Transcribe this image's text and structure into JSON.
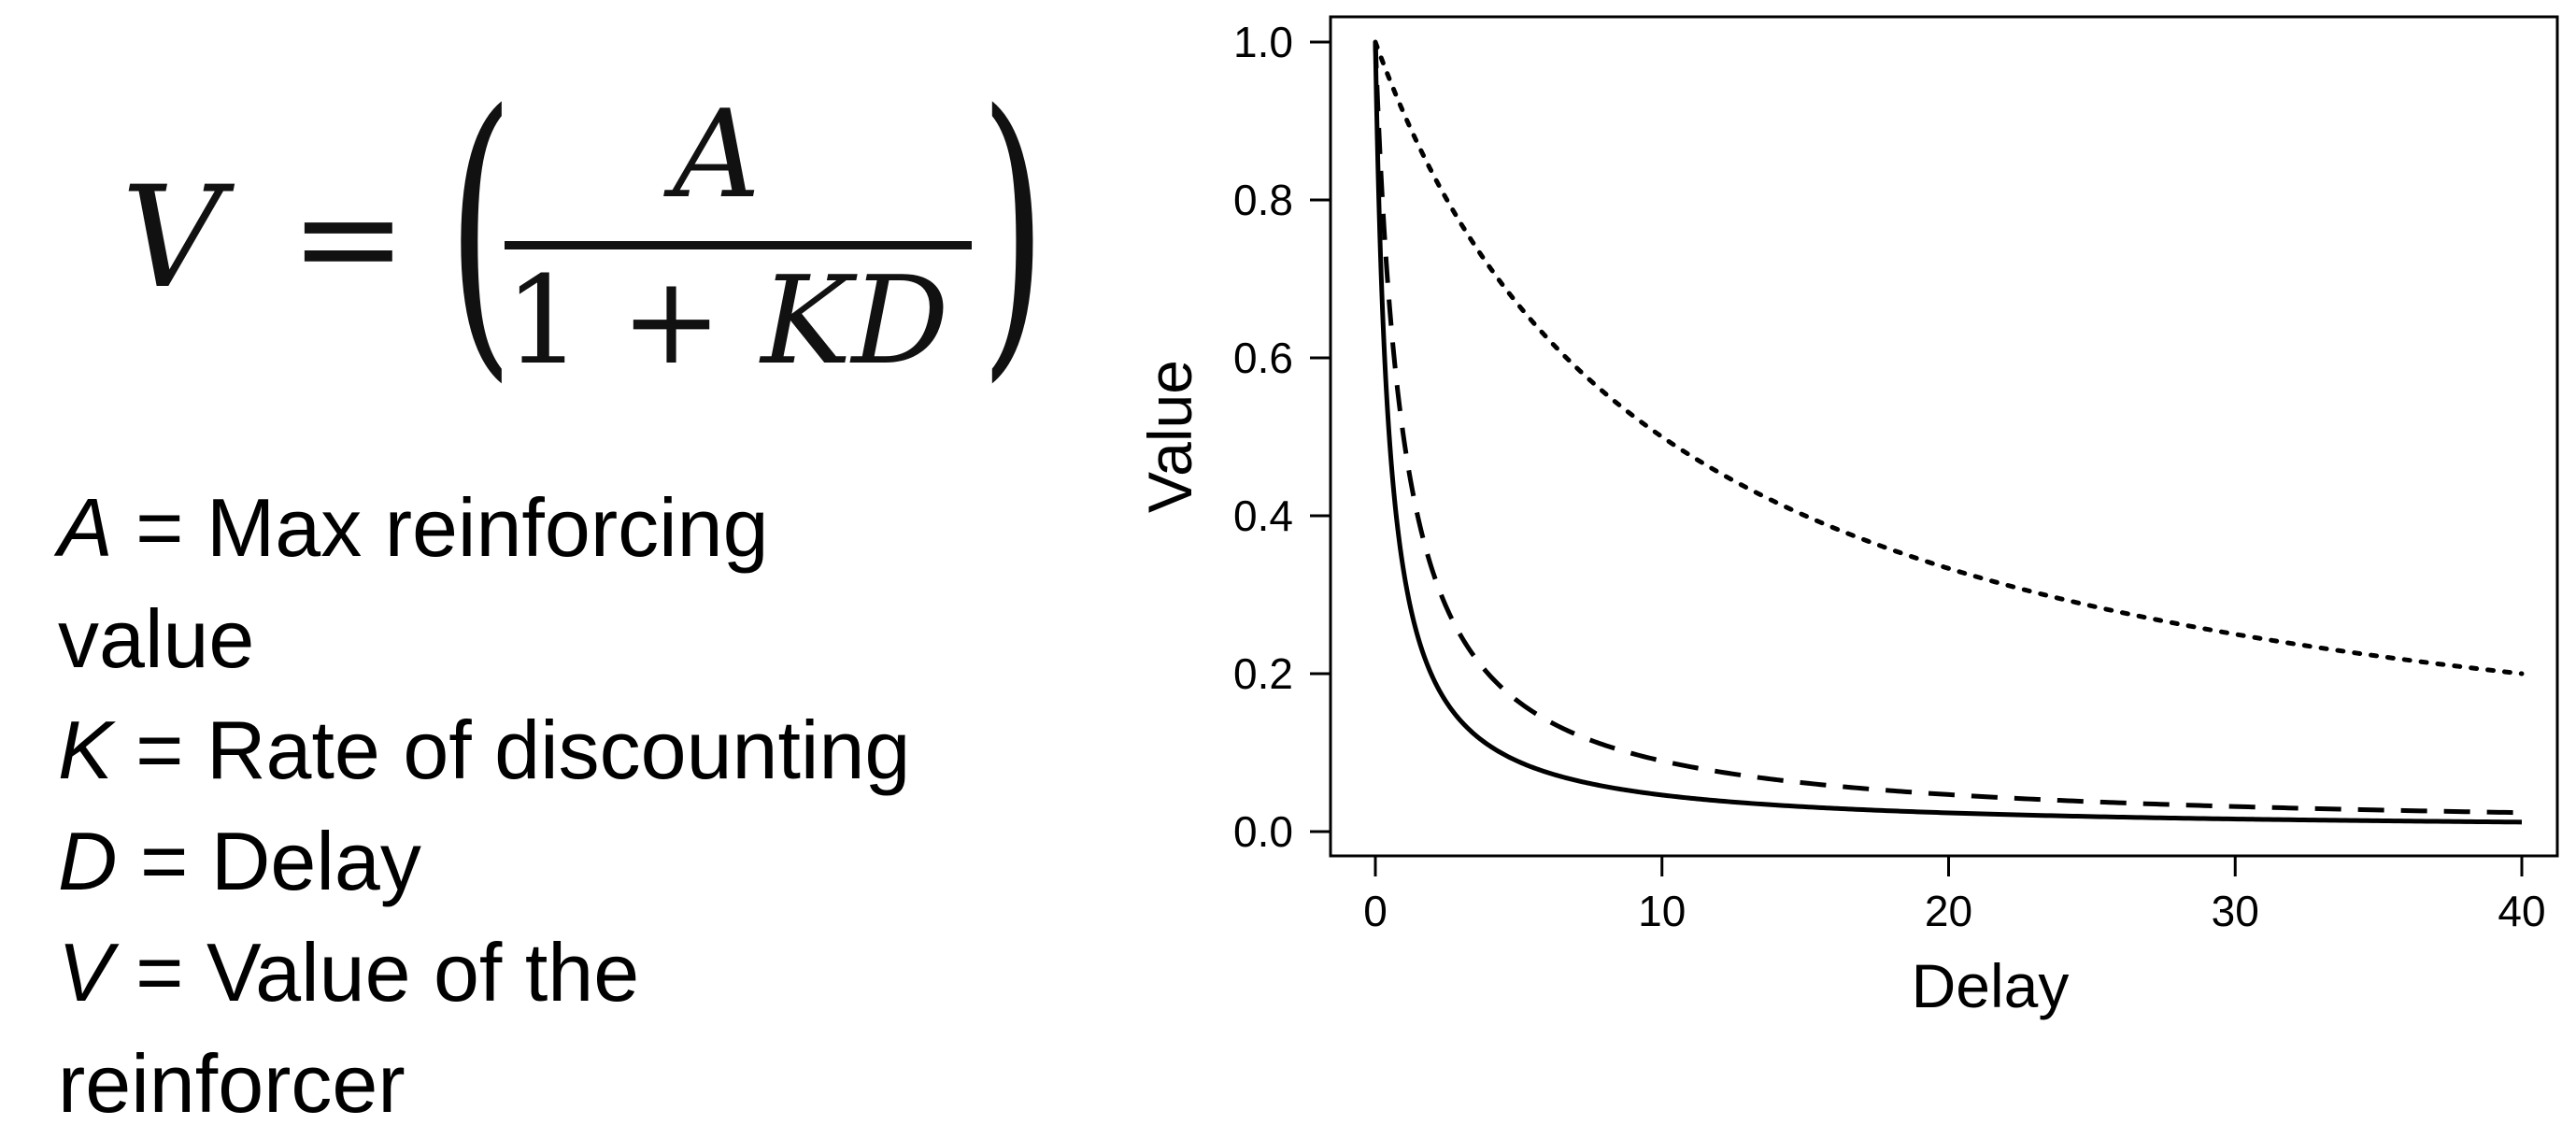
{
  "equation": {
    "lhs": "V",
    "equals": "=",
    "open_paren": "(",
    "close_paren": ")",
    "numerator": "A",
    "denominator_one": "1",
    "denominator_plus": "+",
    "denominator_var": "KD"
  },
  "definitions": [
    {
      "symbol": "A",
      "text": " = Max reinforcing"
    },
    {
      "symbol": "",
      "text": "value"
    },
    {
      "symbol": "K",
      "text": " = Rate of discounting"
    },
    {
      "symbol": "D",
      "text": " = Delay"
    },
    {
      "symbol": "V",
      "text": " = Value of the"
    },
    {
      "symbol": "",
      "text": "reinforcer"
    }
  ],
  "chart_data": {
    "type": "line",
    "title": "",
    "xlabel": "Delay",
    "ylabel": "Value",
    "xlim": [
      0,
      40
    ],
    "ylim": [
      0,
      1
    ],
    "x_ticks": [
      "0",
      "10",
      "20",
      "30",
      "40"
    ],
    "y_ticks": [
      "0.0",
      "0.2",
      "0.4",
      "0.6",
      "0.8",
      "1.0"
    ],
    "grid": false,
    "legend": "none",
    "x": [
      0,
      0.5,
      1,
      2,
      3,
      4,
      5,
      7.5,
      10,
      15,
      20,
      25,
      30,
      35,
      40
    ],
    "series": [
      {
        "style": "solid",
        "color": "#000000",
        "values": [
          1.0,
          0.5,
          0.333,
          0.2,
          0.143,
          0.111,
          0.091,
          0.063,
          0.048,
          0.032,
          0.024,
          0.02,
          0.016,
          0.014,
          0.012
        ]
      },
      {
        "style": "dashed",
        "color": "#000000",
        "values": [
          1.0,
          0.667,
          0.5,
          0.333,
          0.25,
          0.2,
          0.167,
          0.118,
          0.091,
          0.063,
          0.048,
          0.038,
          0.032,
          0.028,
          0.024
        ]
      },
      {
        "style": "dotted",
        "color": "#000000",
        "values": [
          1.0,
          0.952,
          0.909,
          0.833,
          0.769,
          0.714,
          0.667,
          0.571,
          0.5,
          0.4,
          0.333,
          0.286,
          0.25,
          0.222,
          0.2
        ]
      }
    ]
  }
}
